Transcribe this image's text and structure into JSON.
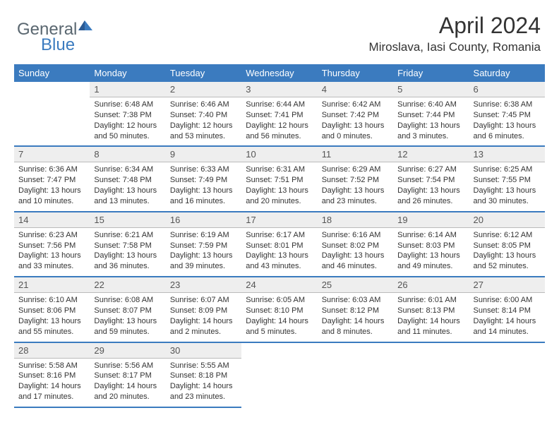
{
  "logo": {
    "general": "General",
    "blue": "Blue"
  },
  "title": "April 2024",
  "location": "Miroslava, Iasi County, Romania",
  "header_bg": "#3b7bbf",
  "days": [
    "Sunday",
    "Monday",
    "Tuesday",
    "Wednesday",
    "Thursday",
    "Friday",
    "Saturday"
  ],
  "weeks": [
    [
      null,
      {
        "n": "1",
        "sr": "Sunrise: 6:48 AM",
        "ss": "Sunset: 7:38 PM",
        "d1": "Daylight: 12 hours",
        "d2": "and 50 minutes."
      },
      {
        "n": "2",
        "sr": "Sunrise: 6:46 AM",
        "ss": "Sunset: 7:40 PM",
        "d1": "Daylight: 12 hours",
        "d2": "and 53 minutes."
      },
      {
        "n": "3",
        "sr": "Sunrise: 6:44 AM",
        "ss": "Sunset: 7:41 PM",
        "d1": "Daylight: 12 hours",
        "d2": "and 56 minutes."
      },
      {
        "n": "4",
        "sr": "Sunrise: 6:42 AM",
        "ss": "Sunset: 7:42 PM",
        "d1": "Daylight: 13 hours",
        "d2": "and 0 minutes."
      },
      {
        "n": "5",
        "sr": "Sunrise: 6:40 AM",
        "ss": "Sunset: 7:44 PM",
        "d1": "Daylight: 13 hours",
        "d2": "and 3 minutes."
      },
      {
        "n": "6",
        "sr": "Sunrise: 6:38 AM",
        "ss": "Sunset: 7:45 PM",
        "d1": "Daylight: 13 hours",
        "d2": "and 6 minutes."
      }
    ],
    [
      {
        "n": "7",
        "sr": "Sunrise: 6:36 AM",
        "ss": "Sunset: 7:47 PM",
        "d1": "Daylight: 13 hours",
        "d2": "and 10 minutes."
      },
      {
        "n": "8",
        "sr": "Sunrise: 6:34 AM",
        "ss": "Sunset: 7:48 PM",
        "d1": "Daylight: 13 hours",
        "d2": "and 13 minutes."
      },
      {
        "n": "9",
        "sr": "Sunrise: 6:33 AM",
        "ss": "Sunset: 7:49 PM",
        "d1": "Daylight: 13 hours",
        "d2": "and 16 minutes."
      },
      {
        "n": "10",
        "sr": "Sunrise: 6:31 AM",
        "ss": "Sunset: 7:51 PM",
        "d1": "Daylight: 13 hours",
        "d2": "and 20 minutes."
      },
      {
        "n": "11",
        "sr": "Sunrise: 6:29 AM",
        "ss": "Sunset: 7:52 PM",
        "d1": "Daylight: 13 hours",
        "d2": "and 23 minutes."
      },
      {
        "n": "12",
        "sr": "Sunrise: 6:27 AM",
        "ss": "Sunset: 7:54 PM",
        "d1": "Daylight: 13 hours",
        "d2": "and 26 minutes."
      },
      {
        "n": "13",
        "sr": "Sunrise: 6:25 AM",
        "ss": "Sunset: 7:55 PM",
        "d1": "Daylight: 13 hours",
        "d2": "and 30 minutes."
      }
    ],
    [
      {
        "n": "14",
        "sr": "Sunrise: 6:23 AM",
        "ss": "Sunset: 7:56 PM",
        "d1": "Daylight: 13 hours",
        "d2": "and 33 minutes."
      },
      {
        "n": "15",
        "sr": "Sunrise: 6:21 AM",
        "ss": "Sunset: 7:58 PM",
        "d1": "Daylight: 13 hours",
        "d2": "and 36 minutes."
      },
      {
        "n": "16",
        "sr": "Sunrise: 6:19 AM",
        "ss": "Sunset: 7:59 PM",
        "d1": "Daylight: 13 hours",
        "d2": "and 39 minutes."
      },
      {
        "n": "17",
        "sr": "Sunrise: 6:17 AM",
        "ss": "Sunset: 8:01 PM",
        "d1": "Daylight: 13 hours",
        "d2": "and 43 minutes."
      },
      {
        "n": "18",
        "sr": "Sunrise: 6:16 AM",
        "ss": "Sunset: 8:02 PM",
        "d1": "Daylight: 13 hours",
        "d2": "and 46 minutes."
      },
      {
        "n": "19",
        "sr": "Sunrise: 6:14 AM",
        "ss": "Sunset: 8:03 PM",
        "d1": "Daylight: 13 hours",
        "d2": "and 49 minutes."
      },
      {
        "n": "20",
        "sr": "Sunrise: 6:12 AM",
        "ss": "Sunset: 8:05 PM",
        "d1": "Daylight: 13 hours",
        "d2": "and 52 minutes."
      }
    ],
    [
      {
        "n": "21",
        "sr": "Sunrise: 6:10 AM",
        "ss": "Sunset: 8:06 PM",
        "d1": "Daylight: 13 hours",
        "d2": "and 55 minutes."
      },
      {
        "n": "22",
        "sr": "Sunrise: 6:08 AM",
        "ss": "Sunset: 8:07 PM",
        "d1": "Daylight: 13 hours",
        "d2": "and 59 minutes."
      },
      {
        "n": "23",
        "sr": "Sunrise: 6:07 AM",
        "ss": "Sunset: 8:09 PM",
        "d1": "Daylight: 14 hours",
        "d2": "and 2 minutes."
      },
      {
        "n": "24",
        "sr": "Sunrise: 6:05 AM",
        "ss": "Sunset: 8:10 PM",
        "d1": "Daylight: 14 hours",
        "d2": "and 5 minutes."
      },
      {
        "n": "25",
        "sr": "Sunrise: 6:03 AM",
        "ss": "Sunset: 8:12 PM",
        "d1": "Daylight: 14 hours",
        "d2": "and 8 minutes."
      },
      {
        "n": "26",
        "sr": "Sunrise: 6:01 AM",
        "ss": "Sunset: 8:13 PM",
        "d1": "Daylight: 14 hours",
        "d2": "and 11 minutes."
      },
      {
        "n": "27",
        "sr": "Sunrise: 6:00 AM",
        "ss": "Sunset: 8:14 PM",
        "d1": "Daylight: 14 hours",
        "d2": "and 14 minutes."
      }
    ],
    [
      {
        "n": "28",
        "sr": "Sunrise: 5:58 AM",
        "ss": "Sunset: 8:16 PM",
        "d1": "Daylight: 14 hours",
        "d2": "and 17 minutes."
      },
      {
        "n": "29",
        "sr": "Sunrise: 5:56 AM",
        "ss": "Sunset: 8:17 PM",
        "d1": "Daylight: 14 hours",
        "d2": "and 20 minutes."
      },
      {
        "n": "30",
        "sr": "Sunrise: 5:55 AM",
        "ss": "Sunset: 8:18 PM",
        "d1": "Daylight: 14 hours",
        "d2": "and 23 minutes."
      },
      null,
      null,
      null,
      null
    ]
  ]
}
